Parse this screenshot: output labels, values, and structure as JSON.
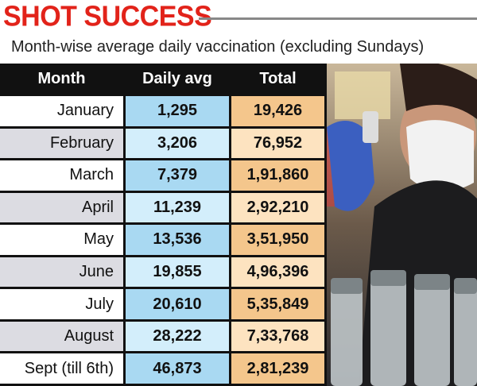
{
  "header": {
    "title": "SHOT SUCCESS",
    "subtitle": "Month-wise average daily vaccination (excluding Sundays)"
  },
  "table": {
    "columns": [
      "Month",
      "Daily avg",
      "Total"
    ],
    "rows": [
      [
        "January",
        "1,295",
        "19,426"
      ],
      [
        "February",
        "3,206",
        "76,952"
      ],
      [
        "March",
        "7,379",
        "1,91,860"
      ],
      [
        "April",
        "11,239",
        "2,92,210"
      ],
      [
        "May",
        "13,536",
        "3,51,950"
      ],
      [
        "June",
        "19,855",
        "4,96,396"
      ],
      [
        "July",
        "20,610",
        "5,35,849"
      ],
      [
        "August",
        "28,222",
        "7,33,768"
      ],
      [
        "Sept (till 6th)",
        "46,873",
        "2,81,239"
      ]
    ]
  }
}
